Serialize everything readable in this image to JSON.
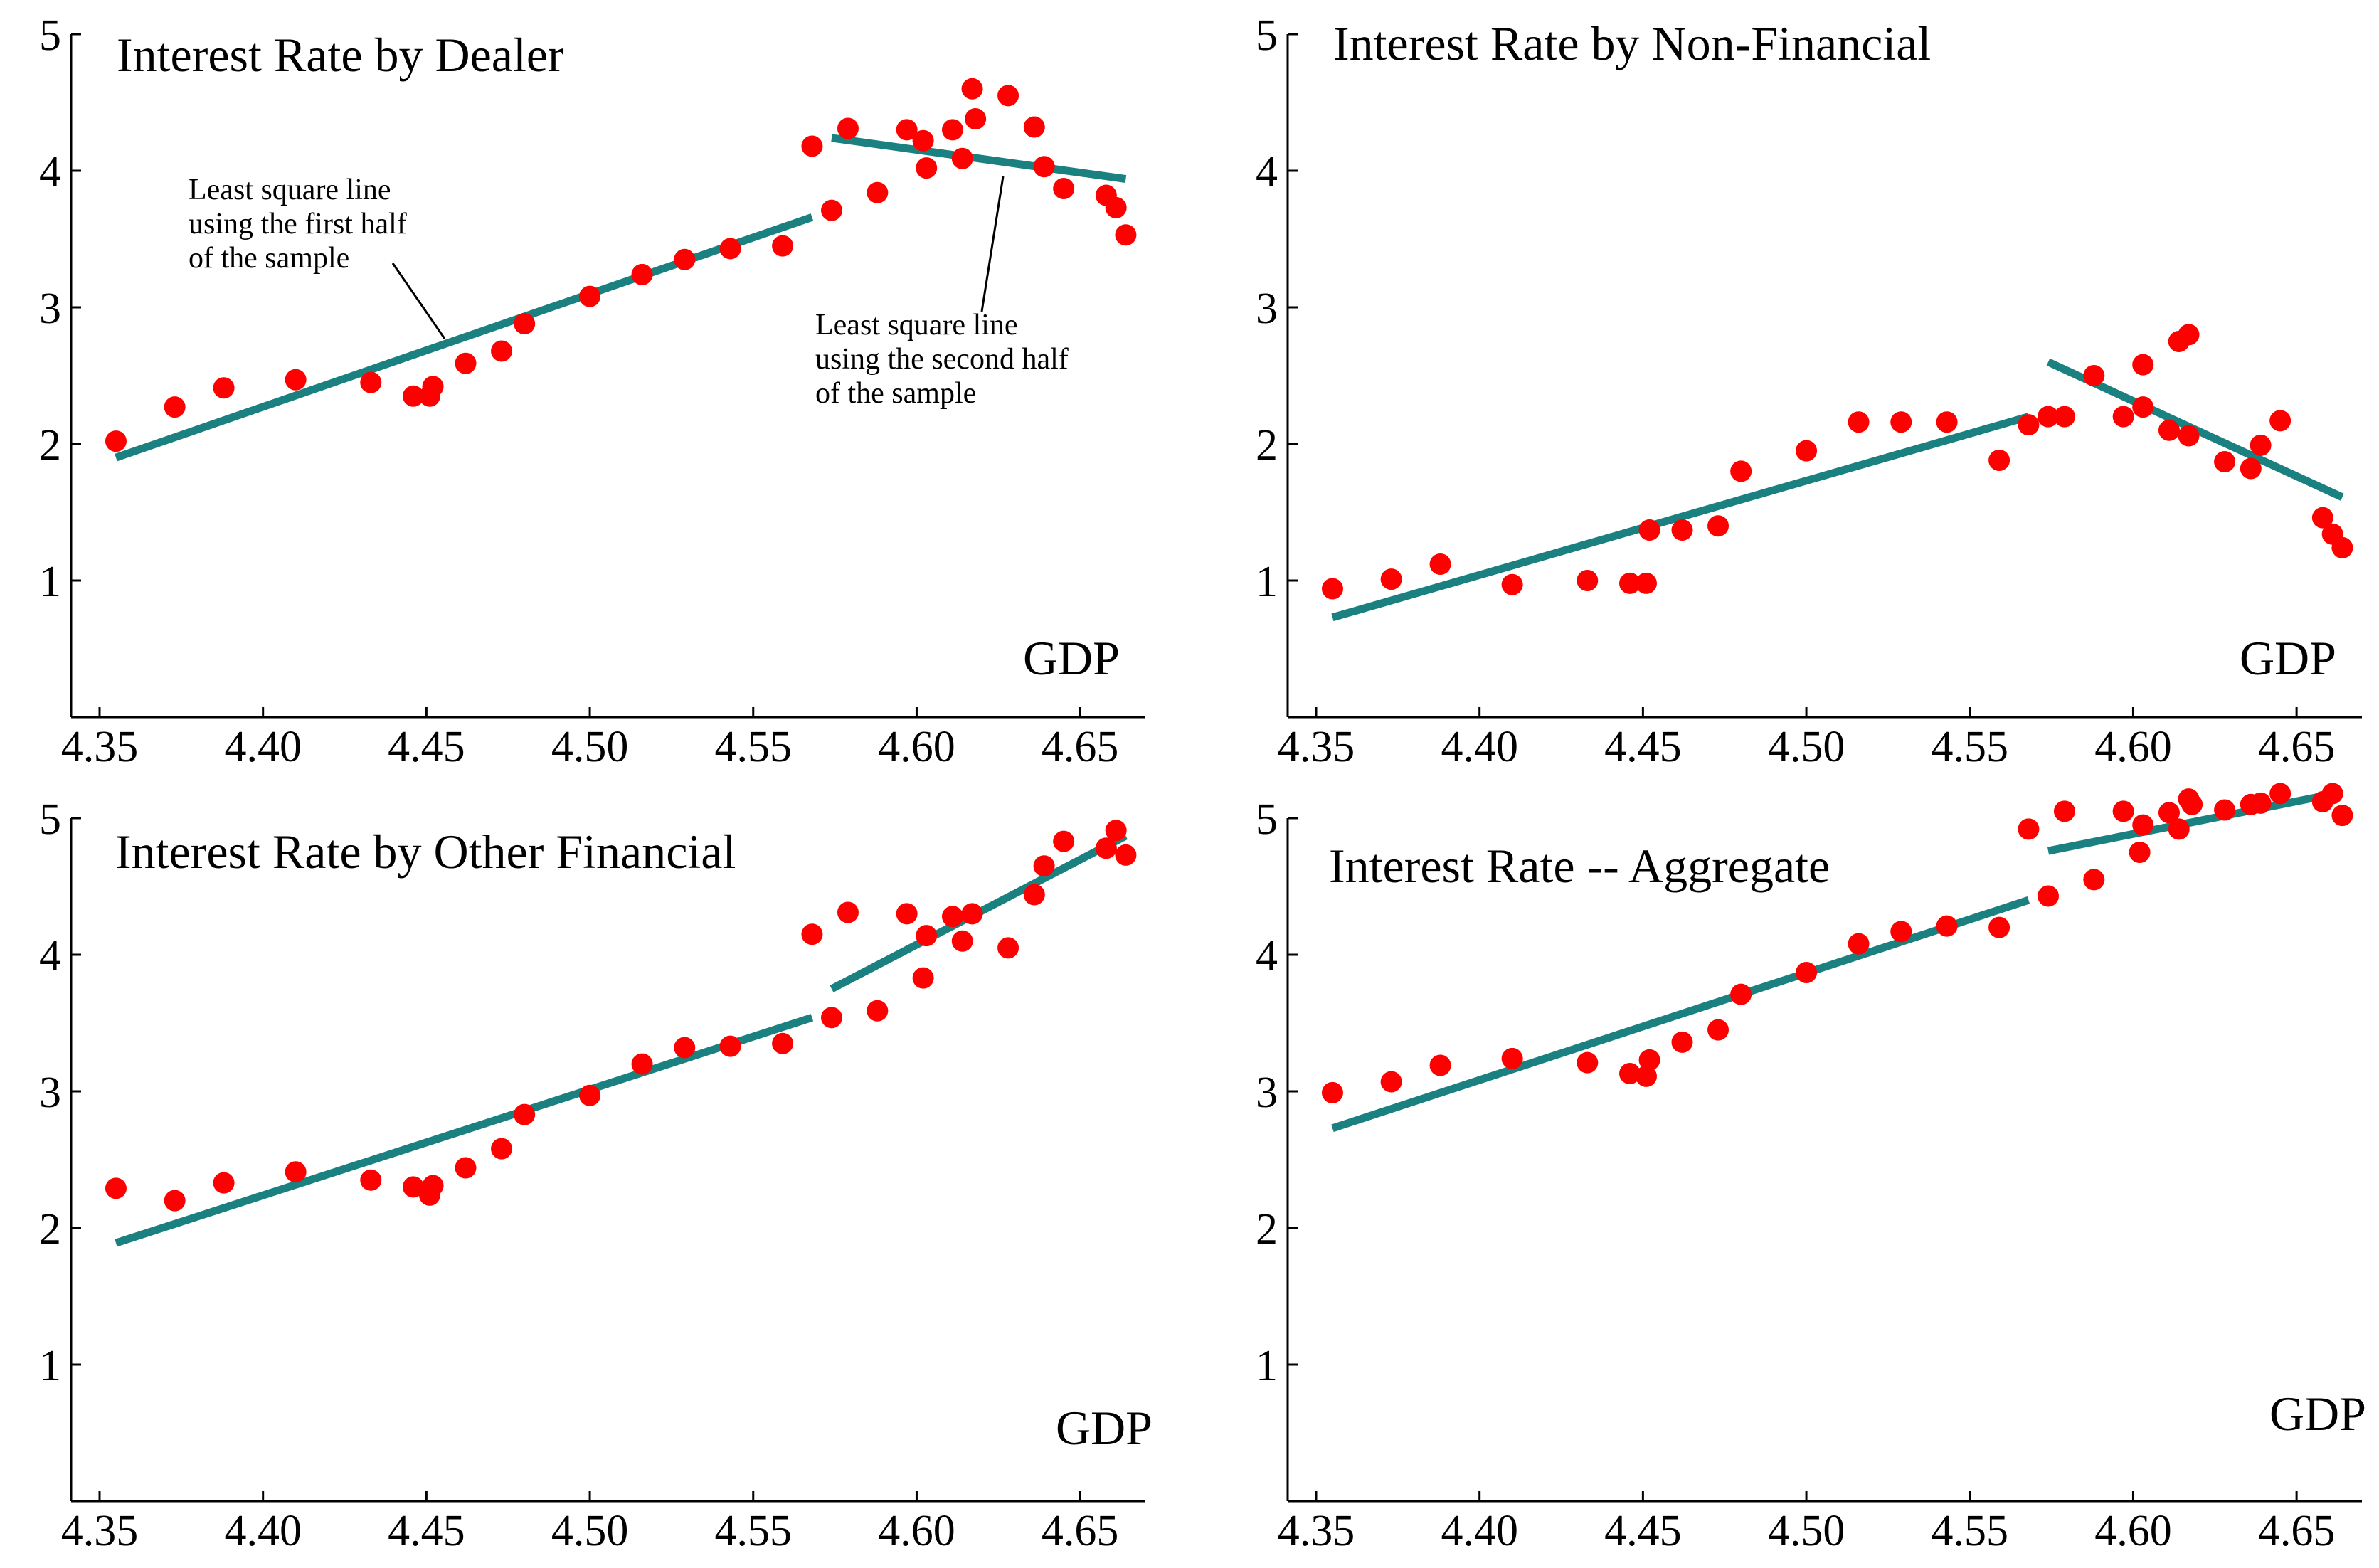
{
  "chart_data": [
    {
      "type": "scatter",
      "title": "Interest Rate by Dealer",
      "xlabel": "GDP",
      "ylabel": "",
      "xlim": [
        4.35,
        4.67
      ],
      "ylim": [
        0,
        5
      ],
      "x_ticks": [
        "4.35",
        "4.40",
        "4.45",
        "4.50",
        "4.55",
        "4.60",
        "4.65"
      ],
      "y_ticks": [
        "1",
        "2",
        "3",
        "4",
        "5"
      ],
      "grid": false,
      "colors": {
        "points": "#ff0000",
        "fit": "#1a8080"
      },
      "points": [
        [
          4.355,
          2.02
        ],
        [
          4.373,
          2.27
        ],
        [
          4.388,
          2.41
        ],
        [
          4.41,
          2.47
        ],
        [
          4.433,
          2.45
        ],
        [
          4.446,
          2.35
        ],
        [
          4.451,
          2.35
        ],
        [
          4.452,
          2.42
        ],
        [
          4.462,
          2.59
        ],
        [
          4.473,
          2.68
        ],
        [
          4.48,
          2.88
        ],
        [
          4.5,
          3.08
        ],
        [
          4.516,
          3.24
        ],
        [
          4.529,
          3.35
        ],
        [
          4.543,
          3.43
        ],
        [
          4.559,
          3.45
        ],
        [
          4.568,
          4.18
        ],
        [
          4.574,
          3.71
        ],
        [
          4.579,
          4.31
        ],
        [
          4.588,
          3.84
        ],
        [
          4.597,
          4.3
        ],
        [
          4.602,
          4.22
        ],
        [
          4.603,
          4.02
        ],
        [
          4.611,
          4.3
        ],
        [
          4.614,
          4.09
        ],
        [
          4.617,
          4.6
        ],
        [
          4.618,
          4.38
        ],
        [
          4.628,
          4.55
        ],
        [
          4.636,
          4.32
        ],
        [
          4.639,
          4.03
        ],
        [
          4.645,
          3.87
        ],
        [
          4.658,
          3.82
        ],
        [
          4.661,
          3.73
        ],
        [
          4.664,
          3.53
        ]
      ],
      "fit_lines": [
        {
          "x": [
            4.355,
            4.568
          ],
          "y": [
            1.9,
            3.66
          ]
        },
        {
          "x": [
            4.574,
            4.664
          ],
          "y": [
            4.24,
            3.94
          ]
        }
      ],
      "annotations": [
        {
          "lines": [
            "Least square line",
            "using the first half",
            "of the sample"
          ]
        },
        {
          "lines": [
            "Least square line",
            "using the second half",
            "of the sample"
          ]
        }
      ]
    },
    {
      "type": "scatter",
      "title": "Interest Rate by Non-Financial",
      "xlabel": "GDP",
      "ylabel": "",
      "xlim": [
        4.35,
        4.67
      ],
      "ylim": [
        0,
        5
      ],
      "x_ticks": [
        "4.35",
        "4.40",
        "4.45",
        "4.50",
        "4.55",
        "4.60",
        "4.65"
      ],
      "y_ticks": [
        "1",
        "2",
        "3",
        "4",
        "5"
      ],
      "grid": false,
      "colors": {
        "points": "#ff0000",
        "fit": "#1a8080"
      },
      "points": [
        [
          4.355,
          0.94
        ],
        [
          4.373,
          1.01
        ],
        [
          4.388,
          1.12
        ],
        [
          4.41,
          0.97
        ],
        [
          4.433,
          1.0
        ],
        [
          4.446,
          0.98
        ],
        [
          4.451,
          0.98
        ],
        [
          4.452,
          1.37
        ],
        [
          4.462,
          1.37
        ],
        [
          4.473,
          1.4
        ],
        [
          4.48,
          1.8
        ],
        [
          4.5,
          1.95
        ],
        [
          4.516,
          2.16
        ],
        [
          4.529,
          2.16
        ],
        [
          4.543,
          2.16
        ],
        [
          4.559,
          1.88
        ],
        [
          4.568,
          2.14
        ],
        [
          4.574,
          2.2
        ],
        [
          4.579,
          2.2
        ],
        [
          4.588,
          2.5
        ],
        [
          4.597,
          2.2
        ],
        [
          4.603,
          2.27
        ],
        [
          4.603,
          2.58
        ],
        [
          4.611,
          2.1
        ],
        [
          4.614,
          2.75
        ],
        [
          4.617,
          2.8
        ],
        [
          4.617,
          2.06
        ],
        [
          4.628,
          1.87
        ],
        [
          4.636,
          1.82
        ],
        [
          4.639,
          1.99
        ],
        [
          4.645,
          2.17
        ],
        [
          4.658,
          1.46
        ],
        [
          4.661,
          1.34
        ],
        [
          4.664,
          1.24
        ]
      ],
      "fit_lines": [
        {
          "x": [
            4.355,
            4.568
          ],
          "y": [
            0.73,
            2.2
          ]
        },
        {
          "x": [
            4.574,
            4.664
          ],
          "y": [
            2.6,
            1.61
          ]
        }
      ]
    },
    {
      "type": "scatter",
      "title": "Interest Rate by Other Financial",
      "xlabel": "GDP",
      "ylabel": "",
      "xlim": [
        4.35,
        4.67
      ],
      "ylim": [
        0,
        5
      ],
      "x_ticks": [
        "4.35",
        "4.40",
        "4.45",
        "4.50",
        "4.55",
        "4.60",
        "4.65"
      ],
      "y_ticks": [
        "1",
        "2",
        "3",
        "4",
        "5"
      ],
      "grid": false,
      "colors": {
        "points": "#ff0000",
        "fit": "#1a8080"
      },
      "points": [
        [
          4.355,
          2.29
        ],
        [
          4.373,
          2.2
        ],
        [
          4.388,
          2.33
        ],
        [
          4.41,
          2.41
        ],
        [
          4.433,
          2.35
        ],
        [
          4.446,
          2.3
        ],
        [
          4.451,
          2.24
        ],
        [
          4.452,
          2.31
        ],
        [
          4.462,
          2.44
        ],
        [
          4.473,
          2.58
        ],
        [
          4.48,
          2.83
        ],
        [
          4.5,
          2.97
        ],
        [
          4.516,
          3.2
        ],
        [
          4.529,
          3.32
        ],
        [
          4.543,
          3.33
        ],
        [
          4.559,
          3.35
        ],
        [
          4.568,
          4.15
        ],
        [
          4.574,
          3.54
        ],
        [
          4.579,
          4.31
        ],
        [
          4.588,
          3.59
        ],
        [
          4.597,
          4.3
        ],
        [
          4.602,
          3.83
        ],
        [
          4.603,
          4.14
        ],
        [
          4.611,
          4.28
        ],
        [
          4.614,
          4.1
        ],
        [
          4.617,
          4.3
        ],
        [
          4.628,
          4.05
        ],
        [
          4.636,
          4.44
        ],
        [
          4.639,
          4.65
        ],
        [
          4.645,
          4.83
        ],
        [
          4.658,
          4.78
        ],
        [
          4.661,
          4.91
        ],
        [
          4.664,
          4.73
        ]
      ],
      "fit_lines": [
        {
          "x": [
            4.355,
            4.568
          ],
          "y": [
            1.89,
            3.54
          ]
        },
        {
          "x": [
            4.574,
            4.664
          ],
          "y": [
            3.75,
            4.87
          ]
        }
      ]
    },
    {
      "type": "scatter",
      "title": "Interest Rate -- Aggregate",
      "xlabel": "GDP",
      "ylabel": "",
      "xlim": [
        4.35,
        4.67
      ],
      "ylim": [
        0,
        5
      ],
      "x_ticks": [
        "4.35",
        "4.40",
        "4.45",
        "4.50",
        "4.55",
        "4.60",
        "4.65"
      ],
      "y_ticks": [
        "1",
        "2",
        "3",
        "4",
        "5"
      ],
      "grid": false,
      "colors": {
        "points": "#ff0000",
        "fit": "#1a8080"
      },
      "points": [
        [
          4.355,
          2.99
        ],
        [
          4.373,
          3.07
        ],
        [
          4.388,
          3.19
        ],
        [
          4.41,
          3.24
        ],
        [
          4.433,
          3.21
        ],
        [
          4.446,
          3.13
        ],
        [
          4.451,
          3.11
        ],
        [
          4.452,
          3.23
        ],
        [
          4.462,
          3.36
        ],
        [
          4.473,
          3.45
        ],
        [
          4.48,
          3.71
        ],
        [
          4.5,
          3.87
        ],
        [
          4.516,
          4.08
        ],
        [
          4.529,
          4.17
        ],
        [
          4.543,
          4.21
        ],
        [
          4.559,
          4.2
        ],
        [
          4.568,
          4.92
        ],
        [
          4.574,
          4.43
        ],
        [
          4.579,
          5.05
        ],
        [
          4.588,
          4.55
        ],
        [
          4.597,
          5.05
        ],
        [
          4.602,
          4.75
        ],
        [
          4.603,
          4.95
        ],
        [
          4.611,
          5.04
        ],
        [
          4.614,
          4.92
        ],
        [
          4.617,
          5.14
        ],
        [
          4.618,
          5.1
        ],
        [
          4.628,
          5.06
        ],
        [
          4.636,
          5.1
        ],
        [
          4.639,
          5.11
        ],
        [
          4.645,
          5.18
        ],
        [
          4.658,
          5.12
        ],
        [
          4.661,
          5.18
        ],
        [
          4.664,
          5.02
        ]
      ],
      "fit_lines": [
        {
          "x": [
            4.355,
            4.568
          ],
          "y": [
            2.73,
            4.4
          ]
        },
        {
          "x": [
            4.574,
            4.664
          ],
          "y": [
            4.76,
            5.19
          ]
        }
      ]
    }
  ]
}
